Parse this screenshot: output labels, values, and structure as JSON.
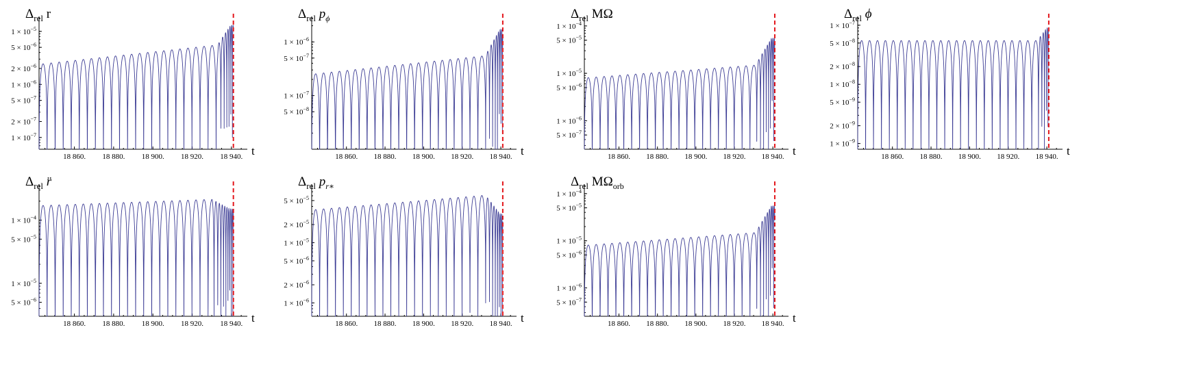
{
  "chart_data": [
    {
      "type": "line",
      "id": "dr",
      "title": {
        "main": "Δ",
        "sub": "rel",
        "tail": " r",
        "tail_style": "normal"
      },
      "xlabel": "t",
      "xlim": [
        18842,
        18946
      ],
      "xticks": [
        18860,
        18880,
        18900,
        18920,
        18940
      ],
      "xtick_labels": [
        "18 860.",
        "18 880.",
        "18 900.",
        "18 920.",
        "18 940."
      ],
      "yscale": "log",
      "ylim": [
        6e-08,
        1.6e-05
      ],
      "yticks": [
        {
          "value": 1e-05,
          "mant": "1",
          "exp": "-5"
        },
        {
          "value": 5e-06,
          "mant": "5",
          "exp": "-6"
        },
        {
          "value": 2e-06,
          "mant": "2",
          "exp": "-6"
        },
        {
          "value": 1e-06,
          "mant": "1",
          "exp": "-6"
        },
        {
          "value": 5e-07,
          "mant": "5",
          "exp": "-7"
        },
        {
          "value": 2e-07,
          "mant": "2",
          "exp": "-7"
        },
        {
          "value": 1e-07,
          "mant": "1",
          "exp": "-7"
        }
      ],
      "series": [
        {
          "name": "relative difference",
          "color": "#3b3b94",
          "peak_start": 2.4e-06,
          "peak_end": 6e-06,
          "late_peak": 1.3e-05,
          "period": 4.1,
          "late_from": 18933
        }
      ],
      "marker_x": 18941,
      "marker_color": "#e3161b"
    },
    {
      "type": "line",
      "id": "dpphi",
      "title": {
        "main": "Δ",
        "sub": "rel",
        "tail": " p",
        "tail_style": "italic",
        "tail_sub": "ϕ"
      },
      "xlabel": "t",
      "xlim": [
        18842,
        18946
      ],
      "xticks": [
        18860,
        18880,
        18900,
        18920,
        18940
      ],
      "xtick_labels": [
        "18 860.",
        "18 880.",
        "18 900.",
        "18 920.",
        "18 940."
      ],
      "yscale": "log",
      "ylim": [
        1e-08,
        2.5e-06
      ],
      "yticks": [
        {
          "value": 1e-06,
          "mant": "1",
          "exp": "-6"
        },
        {
          "value": 5e-07,
          "mant": "5",
          "exp": "-7"
        },
        {
          "value": 1e-07,
          "mant": "1",
          "exp": "-7"
        },
        {
          "value": 5e-08,
          "mant": "5",
          "exp": "-8"
        }
      ],
      "series": [
        {
          "name": "relative difference",
          "color": "#3b3b94",
          "peak_start": 2.5e-07,
          "peak_end": 6e-07,
          "late_peak": 1.7e-06,
          "period": 4.1,
          "late_from": 18932
        }
      ],
      "marker_x": 18941,
      "marker_color": "#e3161b"
    },
    {
      "type": "line",
      "id": "dMOmega",
      "title": {
        "main": "Δ",
        "sub": "rel",
        "tail": " MΩ",
        "tail_style": "normal"
      },
      "xlabel": "t",
      "xlim": [
        18842,
        18946
      ],
      "xticks": [
        18860,
        18880,
        18900,
        18920,
        18940
      ],
      "xtick_labels": [
        "18 860.",
        "18 880.",
        "18 900.",
        "18 920.",
        "18 940."
      ],
      "yscale": "log",
      "ylim": [
        2.5e-07,
        0.00013
      ],
      "yticks": [
        {
          "value": 0.0001,
          "mant": "1",
          "exp": "-4"
        },
        {
          "value": 5e-05,
          "mant": "5",
          "exp": "-5"
        },
        {
          "value": 1e-05,
          "mant": "1",
          "exp": "-5"
        },
        {
          "value": 5e-06,
          "mant": "5",
          "exp": "-6"
        },
        {
          "value": 1e-06,
          "mant": "1",
          "exp": "-6"
        },
        {
          "value": 5e-07,
          "mant": "5",
          "exp": "-7"
        }
      ],
      "series": [
        {
          "name": "relative difference",
          "color": "#3b3b94",
          "peak_start": 8e-06,
          "peak_end": 1.6e-05,
          "late_peak": 5.5e-05,
          "period": 4.1,
          "late_from": 18931
        }
      ],
      "marker_x": 18941,
      "marker_color": "#e3161b"
    },
    {
      "type": "line",
      "id": "dphi",
      "title": {
        "main": "Δ",
        "sub": "rel",
        "tail": " ϕ",
        "tail_style": "italic"
      },
      "xlabel": "t",
      "xlim": [
        18842,
        18946
      ],
      "xticks": [
        18860,
        18880,
        18900,
        18920,
        18940
      ],
      "xtick_labels": [
        "18 860.",
        "18 880.",
        "18 900.",
        "18 920.",
        "18 940."
      ],
      "yscale": "log",
      "ylim": [
        8e-10,
        1.2e-07
      ],
      "yticks": [
        {
          "value": 1e-07,
          "mant": "1",
          "exp": "-7"
        },
        {
          "value": 5e-08,
          "mant": "5",
          "exp": "-8"
        },
        {
          "value": 2e-08,
          "mant": "2",
          "exp": "-8"
        },
        {
          "value": 1e-08,
          "mant": "1",
          "exp": "-8"
        },
        {
          "value": 5e-09,
          "mant": "5",
          "exp": "-9"
        },
        {
          "value": 2e-09,
          "mant": "2",
          "exp": "-9"
        },
        {
          "value": 1e-09,
          "mant": "1",
          "exp": "-9"
        }
      ],
      "series": [
        {
          "name": "relative difference",
          "color": "#3b3b94",
          "peak_start": 5.5e-08,
          "peak_end": 5.5e-08,
          "late_peak": 9e-08,
          "period": 4.1,
          "late_from": 18935
        }
      ],
      "marker_x": 18941,
      "marker_color": "#e3161b"
    },
    {
      "type": "line",
      "id": "drdd",
      "title": {
        "main": "Δ",
        "sub": "rel",
        "tail": " r̈",
        "tail_style": "italic"
      },
      "xlabel": "t",
      "xlim": [
        18842,
        18946
      ],
      "xticks": [
        18860,
        18880,
        18900,
        18920,
        18940
      ],
      "xtick_labels": [
        "18 860.",
        "18 880.",
        "18 900.",
        "18 920.",
        "18 940."
      ],
      "yscale": "log",
      "ylim": [
        3e-06,
        0.00032
      ],
      "yticks": [
        {
          "value": 0.0001,
          "mant": "1",
          "exp": "-4"
        },
        {
          "value": 5e-05,
          "mant": "5",
          "exp": "-5"
        },
        {
          "value": 1e-05,
          "mant": "1",
          "exp": "-5"
        },
        {
          "value": 5e-06,
          "mant": "5",
          "exp": "-6"
        }
      ],
      "series": [
        {
          "name": "relative difference",
          "color": "#3b3b94",
          "peak_start": 0.00017,
          "peak_end": 0.00022,
          "late_peak": 0.00015,
          "period": 4.1,
          "late_from": 18930
        }
      ],
      "marker_x": 18941,
      "marker_color": "#e3161b"
    },
    {
      "type": "line",
      "id": "dprstar",
      "title": {
        "main": "Δ",
        "sub": "rel",
        "tail": " p",
        "tail_style": "italic",
        "tail_sub": "r∗"
      },
      "xlabel": "t",
      "xlim": [
        18842,
        18946
      ],
      "xticks": [
        18860,
        18880,
        18900,
        18920,
        18940
      ],
      "xtick_labels": [
        "18 860.",
        "18 880.",
        "18 900.",
        "18 920.",
        "18 940."
      ],
      "yscale": "log",
      "ylim": [
        6e-07,
        8e-05
      ],
      "yticks": [
        {
          "value": 5e-05,
          "mant": "5",
          "exp": "-5"
        },
        {
          "value": 2e-05,
          "mant": "2",
          "exp": "-5"
        },
        {
          "value": 1e-05,
          "mant": "1",
          "exp": "-5"
        },
        {
          "value": 5e-06,
          "mant": "5",
          "exp": "-6"
        },
        {
          "value": 2e-06,
          "mant": "2",
          "exp": "-6"
        },
        {
          "value": 1e-06,
          "mant": "1",
          "exp": "-6"
        }
      ],
      "series": [
        {
          "name": "relative difference",
          "color": "#3b3b94",
          "peak_start": 3.5e-05,
          "peak_end": 6.5e-05,
          "late_peak": 3e-05,
          "period": 4.1,
          "late_from": 18932
        }
      ],
      "marker_x": 18941,
      "marker_color": "#e3161b"
    },
    {
      "type": "line",
      "id": "dMOmegaorb",
      "title": {
        "main": "Δ",
        "sub": "rel",
        "tail": " MΩ",
        "tail_style": "normal",
        "tail_sub": "orb",
        "tail_sub_style": "normal"
      },
      "xlabel": "t",
      "xlim": [
        18842,
        18946
      ],
      "xticks": [
        18860,
        18880,
        18900,
        18920,
        18940
      ],
      "xtick_labels": [
        "18 860.",
        "18 880.",
        "18 900.",
        "18 920.",
        "18 940."
      ],
      "yscale": "log",
      "ylim": [
        2.5e-07,
        0.00013
      ],
      "yticks": [
        {
          "value": 0.0001,
          "mant": "1",
          "exp": "-4"
        },
        {
          "value": 5e-05,
          "mant": "5",
          "exp": "-5"
        },
        {
          "value": 1e-05,
          "mant": "1",
          "exp": "-5"
        },
        {
          "value": 5e-06,
          "mant": "5",
          "exp": "-6"
        },
        {
          "value": 1e-06,
          "mant": "1",
          "exp": "-6"
        },
        {
          "value": 5e-07,
          "mant": "5",
          "exp": "-7"
        }
      ],
      "series": [
        {
          "name": "relative difference",
          "color": "#3b3b94",
          "peak_start": 8e-06,
          "peak_end": 1.6e-05,
          "late_peak": 5.5e-05,
          "period": 4.1,
          "late_from": 18931
        }
      ],
      "marker_x": 18941,
      "marker_color": "#e3161b"
    }
  ]
}
